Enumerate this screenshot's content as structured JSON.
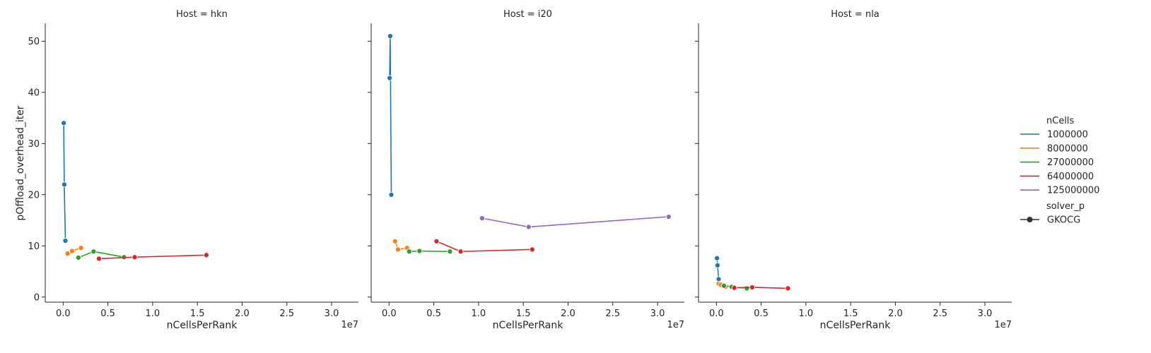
{
  "chart_data": {
    "type": "line",
    "y_label": "pOffload_overhead_iter",
    "x_label": "nCellsPerRank",
    "x_offset_text": "1e7",
    "xlim": [
      -2000000,
      33000000
    ],
    "ylim": [
      -1,
      53.5
    ],
    "x_ticks": [
      0,
      5000000,
      10000000,
      15000000,
      20000000,
      25000000,
      30000000
    ],
    "x_tick_labels": [
      "0.0",
      "0.5",
      "1.0",
      "1.5",
      "2.0",
      "2.5",
      "3.0"
    ],
    "y_ticks": [
      0,
      10,
      20,
      30,
      40,
      50
    ],
    "y_tick_labels": [
      "0",
      "10",
      "20",
      "30",
      "40",
      "50"
    ],
    "legend": {
      "hue_title": "nCells",
      "hue_entries": [
        {
          "label": "1000000",
          "color": "#1f77b4"
        },
        {
          "label": "8000000",
          "color": "#ff7f0e"
        },
        {
          "label": "27000000",
          "color": "#2ca02c"
        },
        {
          "label": "64000000",
          "color": "#d62728"
        },
        {
          "label": "125000000",
          "color": "#9467bd"
        }
      ],
      "style_title": "solver_p",
      "style_entries": [
        {
          "label": "GKOCG",
          "color": "#333333"
        }
      ],
      "placement": "right"
    },
    "panels": [
      {
        "title": "Host = hkn",
        "series": [
          {
            "hue": "1000000",
            "color": "#1f77b4",
            "points": [
              [
                62500,
                34.0
              ],
              [
                125000,
                22.0
              ],
              [
                250000,
                11.0
              ]
            ]
          },
          {
            "hue": "8000000",
            "color": "#ff7f0e",
            "points": [
              [
                500000,
                8.5
              ],
              [
                1000000,
                9.0
              ],
              [
                2000000,
                9.6
              ]
            ]
          },
          {
            "hue": "27000000",
            "color": "#2ca02c",
            "points": [
              [
                1700000,
                7.7
              ],
              [
                3400000,
                8.9
              ],
              [
                6800000,
                7.8
              ]
            ]
          },
          {
            "hue": "64000000",
            "color": "#d62728",
            "points": [
              [
                4000000,
                7.5
              ],
              [
                8000000,
                7.8
              ],
              [
                16000000,
                8.2
              ]
            ]
          }
        ]
      },
      {
        "title": "Host = i20",
        "series": [
          {
            "hue": "1000000",
            "color": "#1f77b4",
            "points": [
              [
                62500,
                42.8
              ],
              [
                125000,
                51.0
              ],
              [
                250000,
                20.0
              ]
            ]
          },
          {
            "hue": "8000000",
            "color": "#ff7f0e",
            "points": [
              [
                670000,
                10.9
              ],
              [
                1000000,
                9.3
              ],
              [
                2000000,
                9.6
              ]
            ]
          },
          {
            "hue": "27000000",
            "color": "#2ca02c",
            "points": [
              [
                2250000,
                8.9
              ],
              [
                3400000,
                9.0
              ],
              [
                6800000,
                8.9
              ]
            ]
          },
          {
            "hue": "64000000",
            "color": "#d62728",
            "points": [
              [
                5300000,
                10.9
              ],
              [
                8000000,
                8.9
              ],
              [
                16000000,
                9.3
              ]
            ]
          },
          {
            "hue": "125000000",
            "color": "#9467bd",
            "points": [
              [
                10400000,
                15.4
              ],
              [
                15600000,
                13.7
              ],
              [
                31250000,
                15.7
              ]
            ]
          }
        ]
      },
      {
        "title": "Host = nla",
        "series": [
          {
            "hue": "1000000",
            "color": "#1f77b4",
            "points": [
              [
                62500,
                7.6
              ],
              [
                125000,
                6.2
              ],
              [
                250000,
                3.5
              ]
            ]
          },
          {
            "hue": "8000000",
            "color": "#ff7f0e",
            "points": [
              [
                250000,
                2.6
              ],
              [
                500000,
                2.4
              ],
              [
                1000000,
                2.0
              ]
            ]
          },
          {
            "hue": "27000000",
            "color": "#2ca02c",
            "points": [
              [
                850000,
                2.2
              ],
              [
                1700000,
                2.0
              ],
              [
                3400000,
                1.7
              ]
            ]
          },
          {
            "hue": "64000000",
            "color": "#d62728",
            "points": [
              [
                2000000,
                1.8
              ],
              [
                4000000,
                1.9
              ],
              [
                8000000,
                1.7
              ]
            ]
          }
        ]
      }
    ]
  }
}
